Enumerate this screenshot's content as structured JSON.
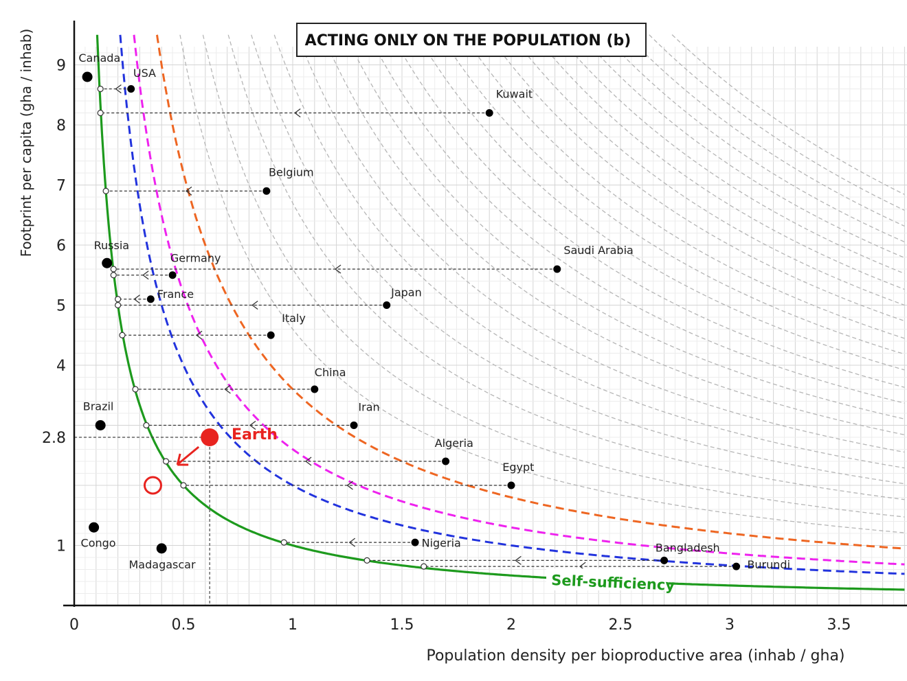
{
  "chart_data": {
    "type": "scatter",
    "title": "ACTING ONLY ON THE POPULATION (b)",
    "xlabel": "Population density per bioproductive area (inhab / gha)",
    "ylabel": "Footprint per capita (gha / inhab)",
    "xlim": [
      0,
      3.8
    ],
    "ylim": [
      0,
      9.7
    ],
    "xticks": [
      {
        "v": 0,
        "label": "0"
      },
      {
        "v": 0.5,
        "label": "0.5"
      },
      {
        "v": 1,
        "label": "1"
      },
      {
        "v": 1.5,
        "label": "1.5"
      },
      {
        "v": 2,
        "label": "2"
      },
      {
        "v": 2.5,
        "label": "2.5"
      },
      {
        "v": 3,
        "label": "3"
      },
      {
        "v": 3.5,
        "label": "3.5"
      }
    ],
    "yticks": [
      {
        "v": 1,
        "label": "1"
      },
      {
        "v": 2.8,
        "label": "2.8"
      },
      {
        "v": 4,
        "label": "4"
      },
      {
        "v": 5,
        "label": "5"
      },
      {
        "v": 6,
        "label": "6"
      },
      {
        "v": 7,
        "label": "7"
      },
      {
        "v": 8,
        "label": "8"
      },
      {
        "v": 9,
        "label": "9"
      }
    ],
    "grid": true,
    "curves": [
      {
        "name": "Self-sufficiency",
        "k": 1,
        "color": "#1d9a1d",
        "style": "solid"
      },
      {
        "k": 2,
        "color": "#2233dd",
        "style": "dashed"
      },
      {
        "k": 2.6,
        "color": "#ee22ee",
        "style": "dashed"
      },
      {
        "k": 3.6,
        "color": "#ee6622",
        "style": "dashed"
      }
    ],
    "background_curves": [
      4.6,
      5.6,
      6.7,
      7.7,
      8.7,
      9.7,
      10.8,
      11.8,
      12.8,
      13.8,
      14.9,
      15.9,
      16.9,
      18,
      19,
      20,
      21,
      22,
      23,
      24,
      25,
      26
    ],
    "countries": [
      {
        "name": "Canada",
        "x": 0.06,
        "y": 8.8,
        "big": true,
        "lx": 0.02,
        "ly": 9.05
      },
      {
        "name": "USA",
        "x": 0.26,
        "y": 8.6,
        "target_x": 0.12,
        "lx": 0.27,
        "ly": 8.8
      },
      {
        "name": "Kuwait",
        "x": 1.9,
        "y": 8.2,
        "target_x": 0.12,
        "lx": 1.93,
        "ly": 8.45
      },
      {
        "name": "Belgium",
        "x": 0.88,
        "y": 6.9,
        "target_x": 0.145,
        "lx": 0.89,
        "ly": 7.15
      },
      {
        "name": "Russia",
        "x": 0.15,
        "y": 5.7,
        "big": true,
        "lx": 0.09,
        "ly": 5.93
      },
      {
        "name": "Germany",
        "x": 0.45,
        "y": 5.5,
        "target_x": 0.18,
        "lx": 0.44,
        "ly": 5.72
      },
      {
        "name": "Saudi Arabia",
        "x": 2.21,
        "y": 5.6,
        "target_x": 0.18,
        "lx": 2.24,
        "ly": 5.85
      },
      {
        "name": "France",
        "x": 0.35,
        "y": 5.1,
        "target_x": 0.2,
        "lx": 0.38,
        "ly": 5.12
      },
      {
        "name": "Japan",
        "x": 1.43,
        "y": 5.0,
        "target_x": 0.2,
        "lx": 1.45,
        "ly": 5.15
      },
      {
        "name": "Italy",
        "x": 0.9,
        "y": 4.5,
        "target_x": 0.22,
        "lx": 0.95,
        "ly": 4.72
      },
      {
        "name": "China",
        "x": 1.1,
        "y": 3.6,
        "target_x": 0.28,
        "lx": 1.1,
        "ly": 3.82
      },
      {
        "name": "Brazil",
        "x": 0.12,
        "y": 3.0,
        "big": true,
        "lx": 0.04,
        "ly": 3.25
      },
      {
        "name": "Iran",
        "x": 1.28,
        "y": 3.0,
        "target_x": 0.33,
        "lx": 1.3,
        "ly": 3.24
      },
      {
        "name": "Algeria",
        "x": 1.7,
        "y": 2.4,
        "target_x": 0.42,
        "lx": 1.65,
        "ly": 2.64
      },
      {
        "name": "Egypt",
        "x": 2.0,
        "y": 2.0,
        "target_x": 0.5,
        "lx": 1.96,
        "ly": 2.24
      },
      {
        "name": "Nigeria",
        "x": 1.56,
        "y": 1.05,
        "target_x": 0.96,
        "lx": 1.59,
        "ly": 0.98
      },
      {
        "name": "Bangladesh",
        "x": 2.7,
        "y": 0.75,
        "target_x": 1.34,
        "lx": 2.66,
        "ly": 0.9
      },
      {
        "name": "Burundi",
        "x": 3.03,
        "y": 0.65,
        "target_x": 1.6,
        "lx": 3.08,
        "ly": 0.62
      },
      {
        "name": "Congo",
        "x": 0.09,
        "y": 1.3,
        "big": true,
        "lx": 0.03,
        "ly": 0.98
      },
      {
        "name": "Madagascar",
        "x": 0.4,
        "y": 0.95,
        "big": true,
        "lx": 0.25,
        "ly": 0.62
      }
    ],
    "earth": {
      "name": "Earth",
      "x": 0.62,
      "y": 2.8,
      "color": "#e8231f",
      "target_x": 0.36,
      "target_y": 2.0,
      "lx": 0.72,
      "ly": 2.86
    }
  }
}
